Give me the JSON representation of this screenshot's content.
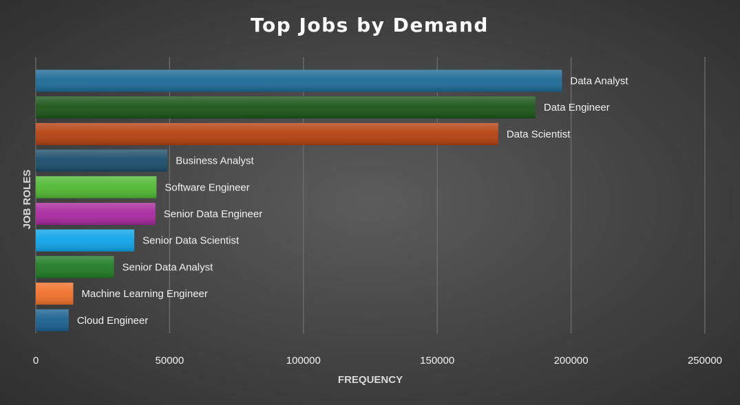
{
  "chart_data": {
    "type": "bar",
    "orientation": "horizontal",
    "title": "Top Jobs by Demand",
    "xlabel": "FREQUENCY",
    "ylabel": "JOB ROLES",
    "xlim": [
      0,
      250000
    ],
    "xticks": [
      "0",
      "50000",
      "100000",
      "150000",
      "200000",
      "250000"
    ],
    "grid": true,
    "categories": [
      "Data Analyst",
      "Data Engineer",
      "Data Scientist",
      "Business Analyst",
      "Software Engineer",
      "Senior Data Engineer",
      "Senior Data Scientist",
      "Senior Data Analyst",
      "Machine Learning Engineer",
      "Cloud Engineer"
    ],
    "values": [
      196600,
      186700,
      172800,
      49200,
      45100,
      44700,
      36800,
      29200,
      14000,
      12300
    ],
    "colors": [
      "#1c6a97",
      "#1a5416",
      "#b4410f",
      "#1a4c6a",
      "#4fb832",
      "#a8289e",
      "#0ea4e8",
      "#1f7b24",
      "#f07028",
      "#1a6090"
    ]
  }
}
